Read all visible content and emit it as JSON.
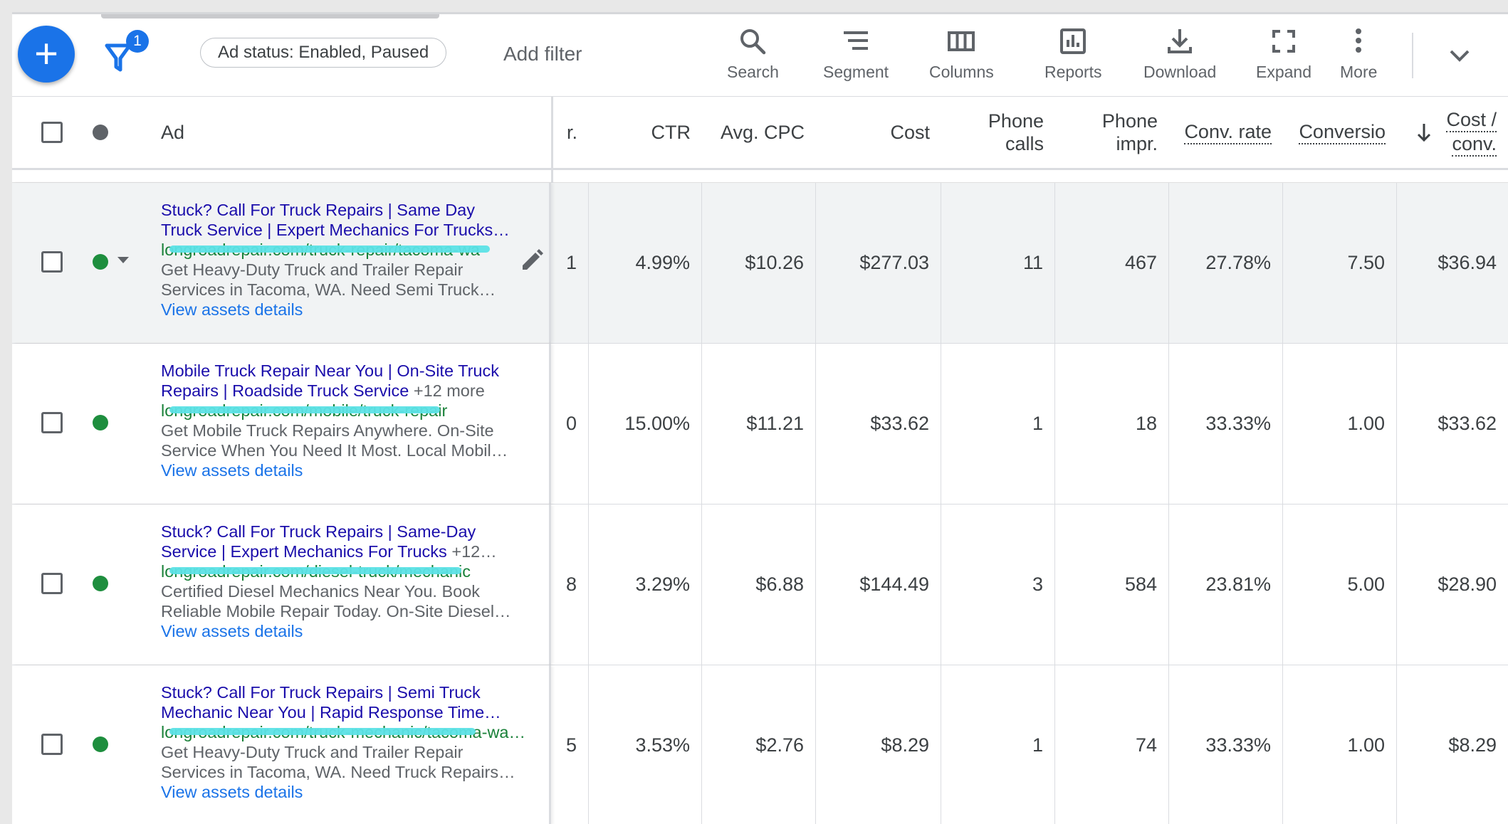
{
  "toolbar": {
    "add_icon": "plus-icon",
    "filter_count": "1",
    "filter_chip": "Ad status: Enabled, Paused",
    "add_filter": "Add filter",
    "tools": [
      {
        "label": "Search",
        "icon": "search-icon"
      },
      {
        "label": "Segment",
        "icon": "segment-icon"
      },
      {
        "label": "Columns",
        "icon": "columns-icon"
      },
      {
        "label": "Reports",
        "icon": "reports-icon"
      },
      {
        "label": "Download",
        "icon": "download-icon"
      },
      {
        "label": "Expand",
        "icon": "expand-icon"
      },
      {
        "label": "More",
        "icon": "more-vert-icon"
      }
    ]
  },
  "table": {
    "headers": {
      "ad": "Ad",
      "impr_partial": "r.",
      "ctr": "CTR",
      "avg_cpc": "Avg. CPC",
      "cost": "Cost",
      "phone_calls_1": "Phone",
      "phone_calls_2": "calls",
      "phone_impr_1": "Phone",
      "phone_impr_2": "impr.",
      "conv_rate": "Conv. rate",
      "conversions": "Conversio",
      "cost_conv_1": "Cost /",
      "cost_conv_2": "conv."
    },
    "rows": [
      {
        "headline_1": "Stuck? Call For Truck Repairs | Same Day",
        "headline_2": "Truck Service | Expert Mechanics For Trucks…",
        "more": "",
        "url": "longroadrepair.com/truck-repair/tacoma-wa",
        "desc_1": "Get Heavy-Duty Truck and Trailer Repair",
        "desc_2": "Services in Tacoma, WA. Need Semi Truck…",
        "link": "View assets details",
        "impr_partial": "1",
        "ctr": "4.99%",
        "avg_cpc": "$10.26",
        "cost": "$277.03",
        "phone_calls": "11",
        "phone_impr": "467",
        "conv_rate": "27.78%",
        "conversions": "7.50",
        "cost_conv": "$36.94"
      },
      {
        "headline_1": "Mobile Truck Repair Near You | On-Site Truck",
        "headline_2": "Repairs | Roadside Truck Service",
        "more": "+12 more",
        "url": "longroadrepair.com/mobile/truck-repair",
        "desc_1": "Get Mobile Truck Repairs Anywhere. On-Site",
        "desc_2": "Service When You Need It Most. Local Mobil…",
        "link": "View assets details",
        "impr_partial": "0",
        "ctr": "15.00%",
        "avg_cpc": "$11.21",
        "cost": "$33.62",
        "phone_calls": "1",
        "phone_impr": "18",
        "conv_rate": "33.33%",
        "conversions": "1.00",
        "cost_conv": "$33.62"
      },
      {
        "headline_1": "Stuck? Call For Truck Repairs | Same-Day",
        "headline_2": "Service | Expert Mechanics For Trucks",
        "more": "+12…",
        "url": "longroadrepair.com/diesel-truck/mechanic",
        "desc_1": "Certified Diesel Mechanics Near You. Book",
        "desc_2": "Reliable Mobile Repair Today. On-Site Diesel…",
        "link": "View assets details",
        "impr_partial": "8",
        "ctr": "3.29%",
        "avg_cpc": "$6.88",
        "cost": "$144.49",
        "phone_calls": "3",
        "phone_impr": "584",
        "conv_rate": "23.81%",
        "conversions": "5.00",
        "cost_conv": "$28.90"
      },
      {
        "headline_1": "Stuck? Call For Truck Repairs | Semi Truck",
        "headline_2": "Mechanic Near You | Rapid Response Time…",
        "more": "",
        "url": "longroadrepair.com/truck-mechanic/tacoma-wa…",
        "desc_1": "Get Heavy-Duty Truck and Trailer Repair",
        "desc_2": "Services in Tacoma, WA. Need Truck Repairs…",
        "link": "View assets details",
        "impr_partial": "5",
        "ctr": "3.53%",
        "avg_cpc": "$2.76",
        "cost": "$8.29",
        "phone_calls": "1",
        "phone_impr": "74",
        "conv_rate": "33.33%",
        "conversions": "1.00",
        "cost_conv": "$8.29"
      }
    ]
  },
  "colors": {
    "accent": "#1a73e8",
    "status_enabled": "#1e8e3e",
    "headline": "#1a0dab",
    "url": "#188038",
    "redaction": "#5ce1e6"
  }
}
